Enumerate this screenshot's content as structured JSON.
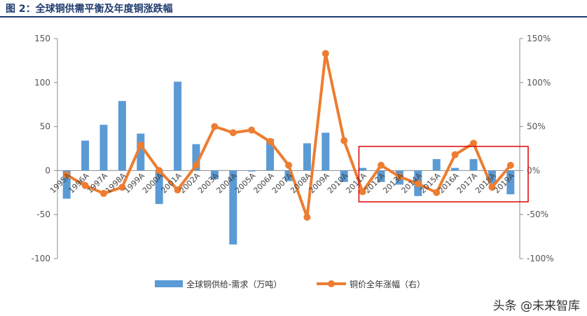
{
  "title": "图 2：全球铜供需平衡及年度铜涨跌幅",
  "watermark": "头条 @未来智库",
  "colors": {
    "bar": "#5b9bd5",
    "line": "#ed7d31",
    "highlight": "#e00000",
    "title": "#1f3b6e"
  },
  "chart_data": {
    "type": "bar+line",
    "categories": [
      "1995A",
      "1996A",
      "1997A",
      "1998A",
      "1999A",
      "2000A",
      "2001A",
      "2002A",
      "2003A",
      "2004A",
      "2005A",
      "2006A",
      "2007A",
      "2008A",
      "2009A",
      "2010A",
      "2011A",
      "2012A",
      "2013A",
      "2014A",
      "2015A",
      "2016A",
      "2017A",
      "2018A",
      "2019A"
    ],
    "series": [
      {
        "name": "全球铜供给-需求（万吨）",
        "type": "bar",
        "axis": "left",
        "values": [
          -32,
          34,
          52,
          79,
          42,
          -38,
          101,
          30,
          -10,
          -84,
          -1,
          36,
          -12,
          31,
          43,
          -13,
          3,
          -13,
          -16,
          -29,
          13,
          3,
          13,
          -15,
          -27
        ]
      },
      {
        "name": "铜价全年涨幅（右）",
        "type": "line",
        "axis": "right",
        "values": [
          -5,
          -17,
          -26,
          -19,
          29,
          0,
          -22,
          6,
          50,
          43,
          46,
          33,
          6,
          -53,
          133,
          34,
          -24,
          6,
          -7,
          -15,
          -25,
          18,
          31,
          -19,
          6
        ]
      }
    ],
    "y_left": {
      "min": -100,
      "max": 150,
      "ticks": [
        -100,
        -50,
        0,
        50,
        100,
        150
      ]
    },
    "y_right": {
      "min": -100,
      "max": 150,
      "unit": "%",
      "ticks": [
        "-100%",
        "-50%",
        "0%",
        "50%",
        "100%",
        "150%"
      ]
    },
    "grid": false,
    "legend_position": "bottom",
    "highlight_range": [
      "2011A",
      "2019A"
    ]
  }
}
